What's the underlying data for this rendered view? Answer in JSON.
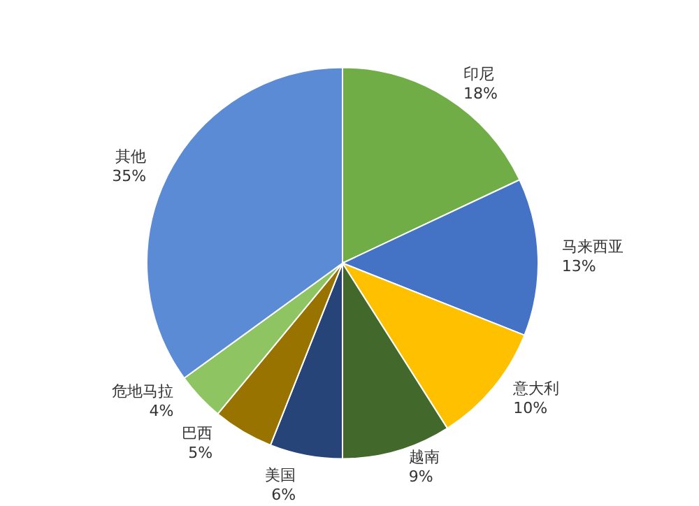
{
  "chart_data": {
    "type": "pie",
    "categories": [
      "印尼",
      "马来西亚",
      "意大利",
      "越南",
      "美国",
      "巴西",
      "危地马拉",
      "其他"
    ],
    "values": [
      18,
      13,
      10,
      9,
      6,
      5,
      4,
      35
    ],
    "value_labels": [
      "18%",
      "13%",
      "10%",
      "9%",
      "6%",
      "5%",
      "4%",
      "35%"
    ],
    "colors": [
      "#70ad47",
      "#4472c4",
      "#ffc000",
      "#43682b",
      "#264478",
      "#997300",
      "#8fc462",
      "#5b8bd5"
    ],
    "legend": false
  }
}
